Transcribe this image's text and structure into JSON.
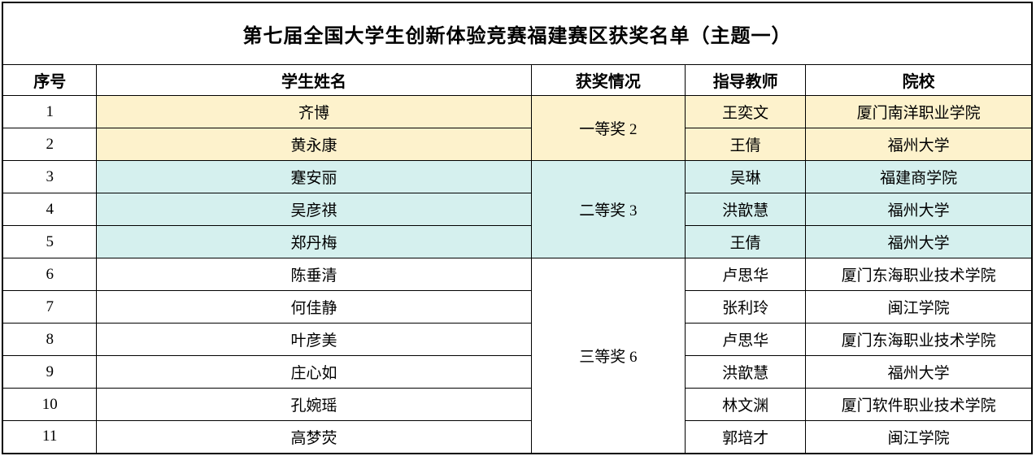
{
  "table": {
    "title": "第七届全国大学生创新体验竞赛福建赛区获奖名单（主题一）",
    "headers": {
      "no": "序号",
      "name": "学生姓名",
      "award": "获奖情况",
      "teacher": "指导教师",
      "school": "院校"
    },
    "awards": {
      "first": {
        "label": "一等奖 2",
        "row_span": 2
      },
      "second": {
        "label": "二等奖 3",
        "row_span": 3
      },
      "third": {
        "label": "三等奖 6",
        "row_span": 6
      }
    },
    "colors": {
      "first_group_bg": "#FDF2CC",
      "second_group_bg": "#D5F0EE",
      "third_group_bg": "#FFFFFF",
      "border": "#000000",
      "text": "#000000"
    },
    "rows": [
      {
        "no": "1",
        "name": "齐博",
        "teacher": "王奕文",
        "school": "厦门南洋职业学院"
      },
      {
        "no": "2",
        "name": "黄永康",
        "teacher": "王倩",
        "school": "福州大学"
      },
      {
        "no": "3",
        "name": "蹇安丽",
        "teacher": "吴琳",
        "school": "福建商学院"
      },
      {
        "no": "4",
        "name": "吴彦祺",
        "teacher": "洪歆慧",
        "school": "福州大学"
      },
      {
        "no": "5",
        "name": "郑丹梅",
        "teacher": "王倩",
        "school": "福州大学"
      },
      {
        "no": "6",
        "name": "陈垂清",
        "teacher": "卢思华",
        "school": "厦门东海职业技术学院"
      },
      {
        "no": "7",
        "name": "何佳静",
        "teacher": "张利玲",
        "school": "闽江学院"
      },
      {
        "no": "8",
        "name": "叶彦美",
        "teacher": "卢思华",
        "school": "厦门东海职业技术学院"
      },
      {
        "no": "9",
        "name": "庄心如",
        "teacher": "洪歆慧",
        "school": "福州大学"
      },
      {
        "no": "10",
        "name": "孔婉瑶",
        "teacher": "林文渊",
        "school": "厦门软件职业技术学院"
      },
      {
        "no": "11",
        "name": "高梦荧",
        "teacher": "郭培才",
        "school": "闽江学院"
      }
    ]
  }
}
